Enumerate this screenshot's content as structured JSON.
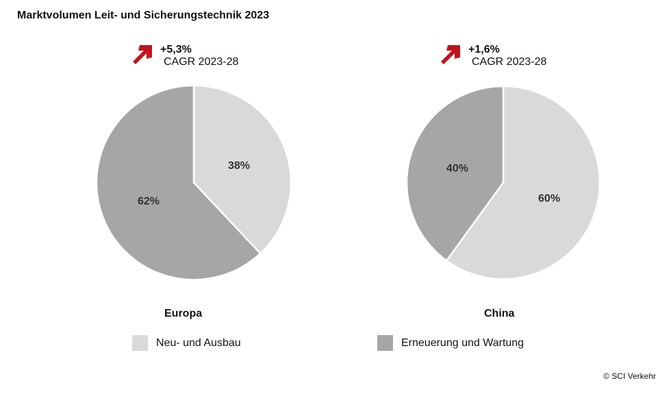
{
  "chart_data": [
    {
      "type": "pie",
      "title": "Europa",
      "categories": [
        "Neu- und Ausbau",
        "Erneuerung und Wartung"
      ],
      "values": [
        38,
        62
      ],
      "labels": [
        "38%",
        "62%"
      ],
      "cagr": "+5,3%",
      "cagr_label": "CAGR 2023-28"
    },
    {
      "type": "pie",
      "title": "China",
      "categories": [
        "Neu- und Ausbau",
        "Erneuerung und Wartung"
      ],
      "values": [
        60,
        40
      ],
      "labels": [
        "60%",
        "40%"
      ],
      "cagr": "+1,6%",
      "cagr_label": "CAGR 2023-28"
    }
  ],
  "title": "Marktvolumen Leit- und Sicherungstechnik 2023",
  "legend": [
    "Neu- und Ausbau",
    "Erneuerung und Wartung"
  ],
  "colors": {
    "light": "#d9d9d9",
    "dark": "#a6a6a6",
    "arrow": "#c0141c"
  },
  "copyright": "© SCI Verkehr"
}
